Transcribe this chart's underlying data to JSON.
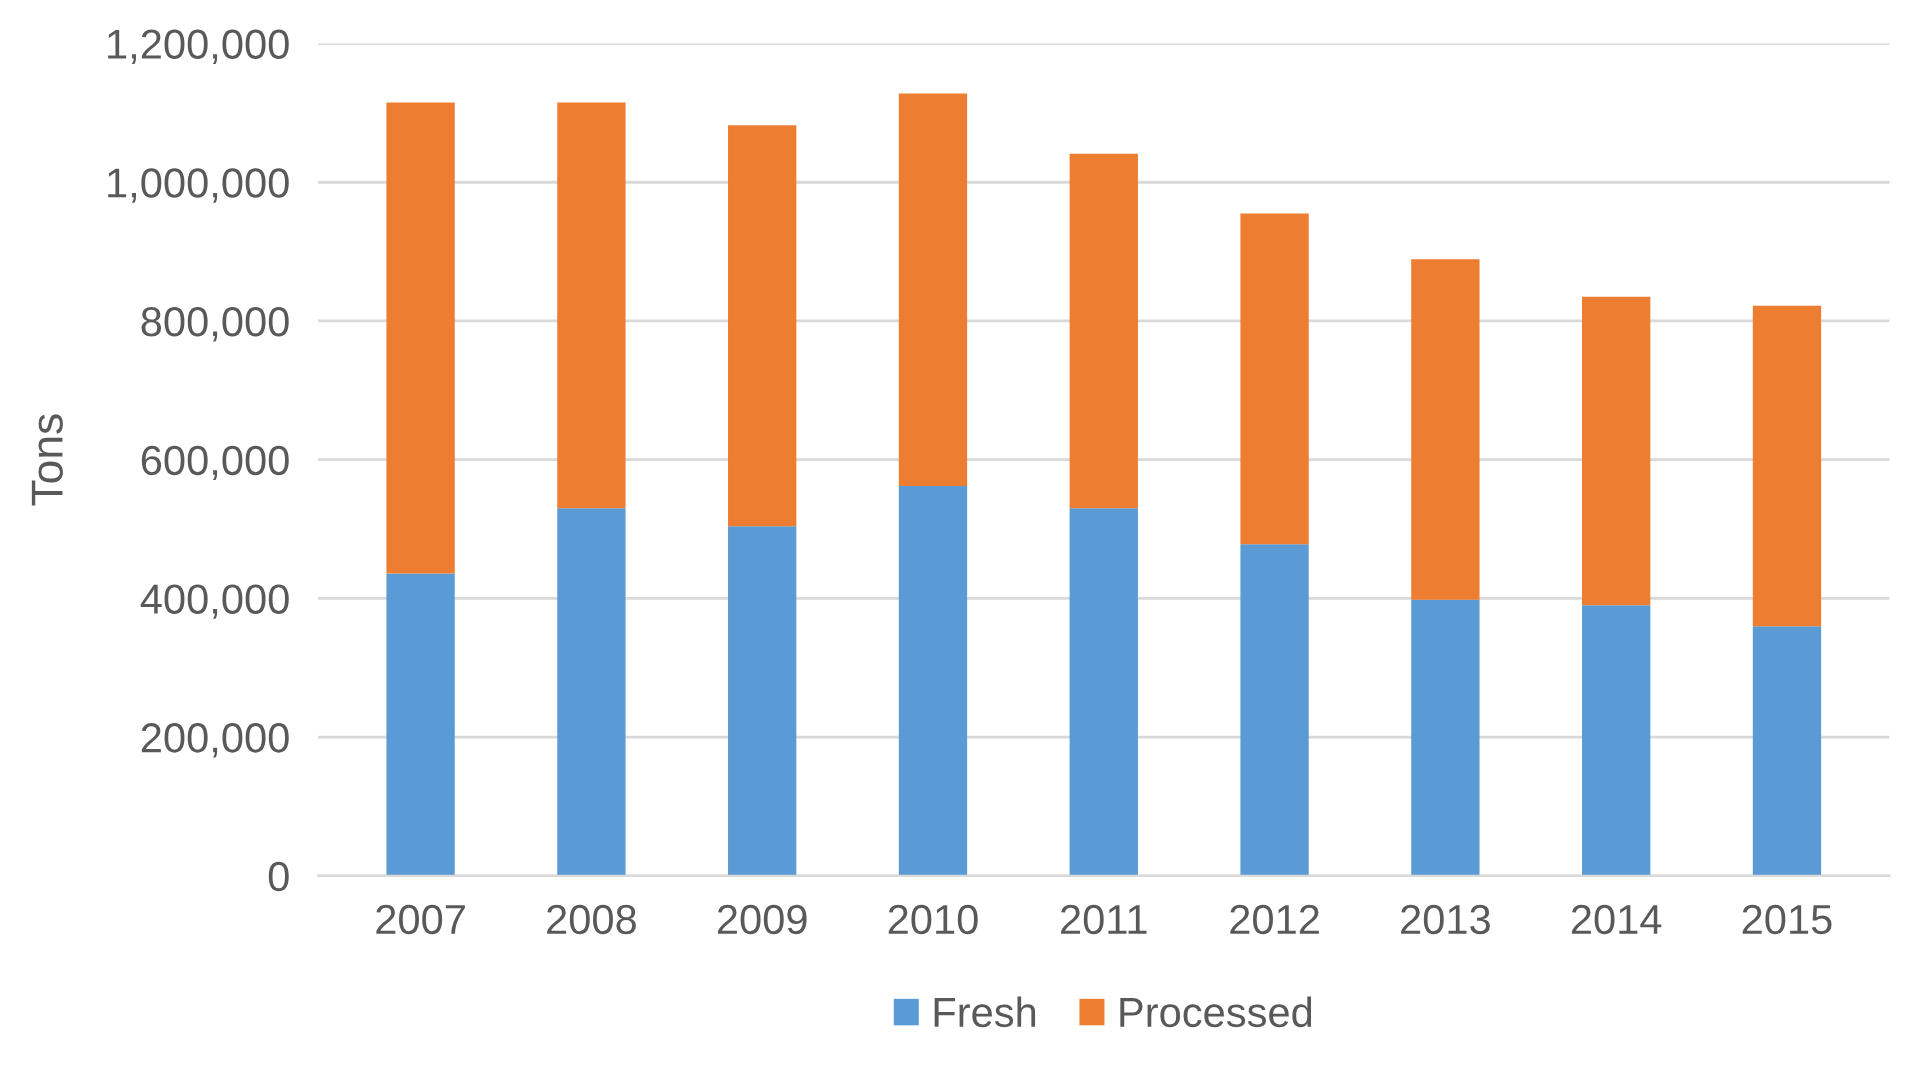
{
  "chart_data": {
    "type": "bar",
    "stacked": true,
    "ylabel": "Tons",
    "categories": [
      "2007",
      "2008",
      "2009",
      "2010",
      "2011",
      "2012",
      "2013",
      "2014",
      "2015"
    ],
    "series": [
      {
        "name": "Fresh",
        "color": "#5b9bd5",
        "values": [
          436000,
          530000,
          504000,
          562000,
          530000,
          478000,
          398000,
          390000,
          360000
        ]
      },
      {
        "name": "Processed",
        "color": "#ed7d31",
        "values": [
          679000,
          585000,
          578000,
          566000,
          511000,
          477000,
          491000,
          445000,
          462000
        ]
      }
    ],
    "ylim": [
      0,
      1200000
    ],
    "yticks": [
      {
        "value": 0,
        "label": "0"
      },
      {
        "value": 200000,
        "label": "200,000"
      },
      {
        "value": 400000,
        "label": "400,000"
      },
      {
        "value": 600000,
        "label": "600,000"
      },
      {
        "value": 800000,
        "label": "800,000"
      },
      {
        "value": 1000000,
        "label": "1,000,000"
      },
      {
        "value": 1200000,
        "label": "1,200,000"
      }
    ],
    "grid": "y",
    "legend": "bottom"
  }
}
